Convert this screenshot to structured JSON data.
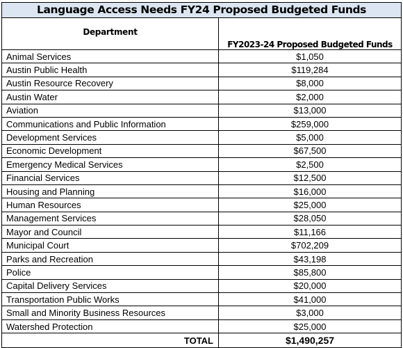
{
  "title": "Language Access Needs FY24 Proposed Budgeted Funds",
  "headers": {
    "department": "Department",
    "funds": "FY2023-24 Proposed Budgeted Funds"
  },
  "rows": [
    {
      "department": "Animal Services",
      "amount": "$1,050"
    },
    {
      "department": "Austin Public Health",
      "amount": "$119,284"
    },
    {
      "department": "Austin Resource Recovery",
      "amount": "$8,000"
    },
    {
      "department": "Austin Water",
      "amount": "$2,000"
    },
    {
      "department": "Aviation",
      "amount": "$13,000"
    },
    {
      "department": "Communications and Public Information",
      "amount": "$259,000"
    },
    {
      "department": "Development Services",
      "amount": "$5,000"
    },
    {
      "department": "Economic Development",
      "amount": "$67,500"
    },
    {
      "department": "Emergency Medical Services",
      "amount": "$2,500"
    },
    {
      "department": "Financial Services",
      "amount": "$12,500"
    },
    {
      "department": "Housing and Planning",
      "amount": "$16,000"
    },
    {
      "department": "Human Resources",
      "amount": "$25,000"
    },
    {
      "department": "Management Services",
      "amount": "$28,050"
    },
    {
      "department": "Mayor and Council",
      "amount": "$11,166"
    },
    {
      "department": "Municipal Court",
      "amount": "$702,209"
    },
    {
      "department": "Parks and Recreation",
      "amount": "$43,198"
    },
    {
      "department": "Police",
      "amount": "$85,800"
    },
    {
      "department": "Capital Delivery Services",
      "amount": "$20,000"
    },
    {
      "department": "Transportation Public Works",
      "amount": "$41,000"
    },
    {
      "department": "Small and Minority Business Resources",
      "amount": "$3,000"
    },
    {
      "department": "Watershed Protection",
      "amount": "$25,000"
    }
  ],
  "total": {
    "label": "TOTAL",
    "amount": "$1,490,257"
  },
  "colors": {
    "title_background": "#dce6f2"
  }
}
